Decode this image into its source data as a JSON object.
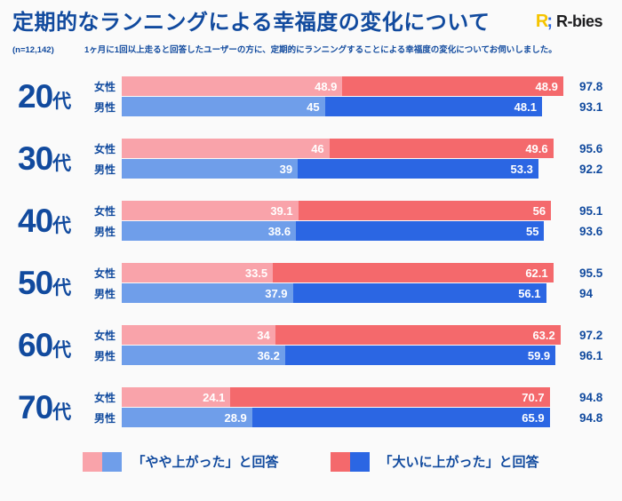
{
  "header": {
    "title": "定期的なランニングによる幸福度の変化について",
    "sample_size": "(n=12,142)",
    "description": "1ヶ月に1回以上走ると回答したユーザーの方に、定期的にランニングすることによる幸福度の変化についてお伺いしました。",
    "logo_mark": "R",
    "logo_dot": ";",
    "logo_text": "R-bies"
  },
  "colors": {
    "background": "#FAFAFA",
    "navy_text": "#114A9E",
    "female_light": "#F9A3AA",
    "female_dark": "#F4696C",
    "male_light": "#6F9EEA",
    "male_dark": "#2B66E3",
    "bar_value_text": "#FFFFFF",
    "logo_yellow": "#F5C400",
    "logo_blue": "#2D68E2"
  },
  "legend": {
    "items": [
      {
        "label": "「やや上がった」と回答",
        "female_color": "#F9A3AA",
        "male_color": "#6F9EEA"
      },
      {
        "label": "「大いに上がった」と回答",
        "female_color": "#F4696C",
        "male_color": "#2B66E3"
      }
    ]
  },
  "chart_data": {
    "type": "bar",
    "orientation": "horizontal",
    "stacked": true,
    "unit": "%",
    "xlim": [
      0,
      100
    ],
    "grid": false,
    "title": "定期的なランニングによる幸福度の変化について",
    "sample_size_n": 12142,
    "segments": [
      "やや上がった",
      "大いに上がった"
    ],
    "groups": [
      {
        "age": "20",
        "suffix": "代",
        "rows": [
          {
            "gender": "女性",
            "somewhat": 48.9,
            "greatly": 48.9,
            "total": 97.8
          },
          {
            "gender": "男性",
            "somewhat": 45,
            "greatly": 48.1,
            "total": 93.1
          }
        ]
      },
      {
        "age": "30",
        "suffix": "代",
        "rows": [
          {
            "gender": "女性",
            "somewhat": 46,
            "greatly": 49.6,
            "total": 95.6
          },
          {
            "gender": "男性",
            "somewhat": 39,
            "greatly": 53.3,
            "total": 92.2
          }
        ]
      },
      {
        "age": "40",
        "suffix": "代",
        "rows": [
          {
            "gender": "女性",
            "somewhat": 39.1,
            "greatly": 56,
            "total": 95.1
          },
          {
            "gender": "男性",
            "somewhat": 38.6,
            "greatly": 55,
            "total": 93.6
          }
        ]
      },
      {
        "age": "50",
        "suffix": "代",
        "rows": [
          {
            "gender": "女性",
            "somewhat": 33.5,
            "greatly": 62.1,
            "total": 95.5
          },
          {
            "gender": "男性",
            "somewhat": 37.9,
            "greatly": 56.1,
            "total": 94
          }
        ]
      },
      {
        "age": "60",
        "suffix": "代",
        "rows": [
          {
            "gender": "女性",
            "somewhat": 34,
            "greatly": 63.2,
            "total": 97.2
          },
          {
            "gender": "男性",
            "somewhat": 36.2,
            "greatly": 59.9,
            "total": 96.1
          }
        ]
      },
      {
        "age": "70",
        "suffix": "代",
        "rows": [
          {
            "gender": "女性",
            "somewhat": 24.1,
            "greatly": 70.7,
            "total": 94.8
          },
          {
            "gender": "男性",
            "somewhat": 28.9,
            "greatly": 65.9,
            "total": 94.8
          }
        ]
      }
    ]
  }
}
